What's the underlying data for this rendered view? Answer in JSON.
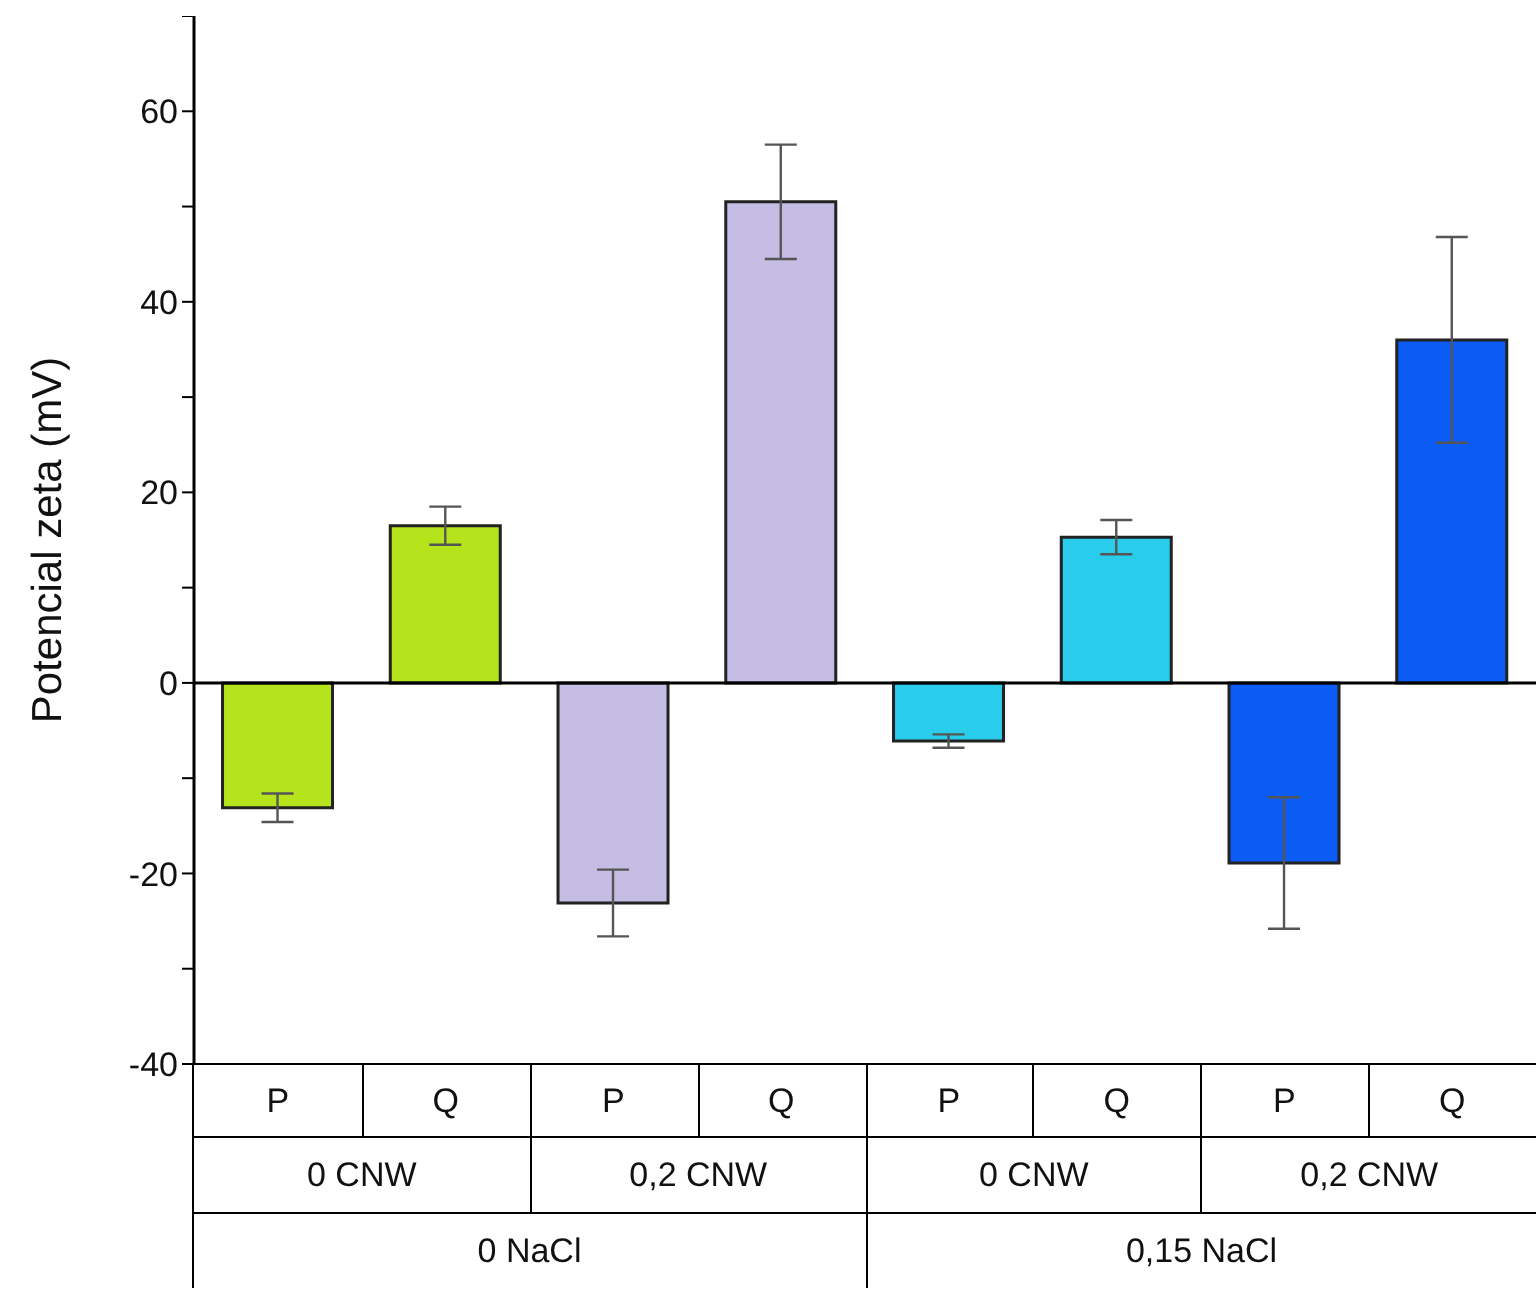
{
  "chart_data": {
    "type": "bar",
    "ylabel": "Potencial zeta (mV)",
    "categories": [
      "P",
      "Q",
      "P",
      "Q",
      "P",
      "Q",
      "P",
      "Q"
    ],
    "values": [
      -13.1,
      16.5,
      -23.1,
      50.5,
      -6.1,
      15.3,
      -18.9,
      36.0
    ],
    "errors": [
      1.5,
      2.0,
      3.5,
      6.0,
      0.7,
      1.8,
      6.9,
      10.8
    ],
    "colors": [
      "#b5e31c",
      "#b5e31c",
      "#c5bde3",
      "#c5bde3",
      "#29cdeb",
      "#29cdeb",
      "#0a5cf5",
      "#0a5cf5"
    ],
    "ylim": [
      -40,
      70
    ],
    "yticks": [
      -40,
      {
        "value": -30,
        "label": null
      },
      -20,
      {
        "value": -10,
        "label": null
      },
      0,
      {
        "value": 10,
        "label": null
      },
      20,
      {
        "value": 30,
        "label": null
      },
      40,
      {
        "value": 50,
        "label": null
      },
      60,
      {
        "value": 70,
        "label": null
      }
    ],
    "ref_lines": [
      {
        "axis": "y",
        "value": 0,
        "color": "#000000"
      }
    ],
    "annotations": [
      "0 CNW",
      "0,2 CNW",
      "0 CNW",
      "0,2 CNW",
      "0 NaCl",
      "0,15 NaCl"
    ]
  }
}
